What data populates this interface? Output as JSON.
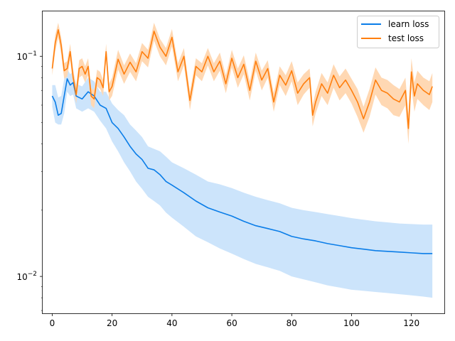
{
  "chart_data": {
    "type": "line",
    "title": "",
    "xlabel": "",
    "ylabel": "",
    "yscale": "log",
    "xlim": [
      -3.2,
      131
    ],
    "ylim": [
      0.0068,
      0.16
    ],
    "grid": false,
    "legend_position": "top-right",
    "x_ticks": [
      0,
      20,
      40,
      60,
      80,
      100,
      120
    ],
    "y_major_ticks": [
      0.01,
      0.1
    ],
    "y_major_tick_labels": [
      {
        "base": "10",
        "exp": "−2"
      },
      {
        "base": "10",
        "exp": "−1"
      }
    ],
    "y_minor_ticks": [
      0.007,
      0.008,
      0.009,
      0.02,
      0.03,
      0.04,
      0.05,
      0.06,
      0.07,
      0.08,
      0.09
    ],
    "series": [
      {
        "name": "learn loss",
        "color": "#1f77b4",
        "line_color": "#0a7de8",
        "band_color": "#cce4fb",
        "x": [
          0,
          1,
          2,
          3,
          4,
          5,
          6,
          7,
          8,
          10,
          12,
          14,
          16,
          18,
          20,
          22,
          24,
          26,
          28,
          30,
          32,
          34,
          36,
          38,
          40,
          44,
          48,
          52,
          56,
          60,
          64,
          68,
          72,
          76,
          80,
          84,
          88,
          92,
          96,
          100,
          104,
          108,
          112,
          116,
          120,
          124,
          127
        ],
        "y": [
          0.066,
          0.062,
          0.054,
          0.055,
          0.066,
          0.079,
          0.074,
          0.076,
          0.066,
          0.064,
          0.069,
          0.066,
          0.06,
          0.058,
          0.05,
          0.047,
          0.043,
          0.039,
          0.036,
          0.034,
          0.031,
          0.0305,
          0.029,
          0.027,
          0.026,
          0.024,
          0.022,
          0.0205,
          0.0196,
          0.0188,
          0.0178,
          0.017,
          0.0165,
          0.016,
          0.0152,
          0.0148,
          0.0145,
          0.0141,
          0.0138,
          0.0135,
          0.0133,
          0.0131,
          0.013,
          0.0129,
          0.0128,
          0.0127,
          0.0127
        ],
        "lower": [
          0.059,
          0.05,
          0.049,
          0.049,
          0.055,
          0.069,
          0.066,
          0.067,
          0.058,
          0.056,
          0.058,
          0.056,
          0.051,
          0.047,
          0.041,
          0.037,
          0.033,
          0.03,
          0.027,
          0.025,
          0.023,
          0.022,
          0.021,
          0.0195,
          0.0185,
          0.0168,
          0.0152,
          0.0143,
          0.0134,
          0.0127,
          0.012,
          0.0114,
          0.011,
          0.0106,
          0.01,
          0.0097,
          0.0094,
          0.0091,
          0.0089,
          0.0087,
          0.0086,
          0.0085,
          0.0084,
          0.0083,
          0.0082,
          0.0081,
          0.008
        ],
        "upper": [
          0.074,
          0.074,
          0.065,
          0.066,
          0.079,
          0.088,
          0.083,
          0.085,
          0.075,
          0.073,
          0.08,
          0.077,
          0.069,
          0.069,
          0.061,
          0.057,
          0.054,
          0.049,
          0.046,
          0.043,
          0.039,
          0.038,
          0.037,
          0.035,
          0.033,
          0.031,
          0.029,
          0.027,
          0.0262,
          0.0252,
          0.024,
          0.023,
          0.0222,
          0.0215,
          0.0205,
          0.02,
          0.0196,
          0.0192,
          0.0188,
          0.0184,
          0.0181,
          0.0178,
          0.0176,
          0.0174,
          0.0173,
          0.0172,
          0.0172
        ]
      },
      {
        "name": "test loss",
        "color": "#ff7f0e",
        "line_color": "#ff7f0e",
        "band_color": "#ffd8b3",
        "x": [
          0,
          1,
          2,
          3,
          4,
          5,
          6,
          7,
          8,
          9,
          10,
          11,
          12,
          13,
          14,
          15,
          16,
          17,
          18,
          19,
          20,
          22,
          24,
          26,
          28,
          30,
          32,
          34,
          36,
          38,
          40,
          42,
          44,
          46,
          48,
          50,
          52,
          54,
          56,
          58,
          60,
          62,
          64,
          66,
          68,
          70,
          72,
          74,
          76,
          78,
          80,
          82,
          84,
          86,
          87,
          88,
          90,
          92,
          94,
          96,
          98,
          100,
          102,
          104,
          106,
          108,
          110,
          112,
          114,
          116,
          118,
          119,
          120,
          121,
          122,
          124,
          126,
          127
        ],
        "y": [
          0.088,
          0.115,
          0.132,
          0.112,
          0.086,
          0.088,
          0.105,
          0.08,
          0.067,
          0.088,
          0.09,
          0.083,
          0.09,
          0.066,
          0.064,
          0.08,
          0.078,
          0.072,
          0.105,
          0.069,
          0.073,
          0.097,
          0.083,
          0.094,
          0.085,
          0.105,
          0.098,
          0.13,
          0.11,
          0.1,
          0.122,
          0.085,
          0.1,
          0.063,
          0.09,
          0.085,
          0.1,
          0.085,
          0.095,
          0.075,
          0.098,
          0.08,
          0.092,
          0.07,
          0.095,
          0.078,
          0.088,
          0.062,
          0.082,
          0.074,
          0.086,
          0.068,
          0.075,
          0.08,
          0.054,
          0.062,
          0.075,
          0.068,
          0.082,
          0.072,
          0.078,
          0.07,
          0.062,
          0.052,
          0.062,
          0.078,
          0.07,
          0.068,
          0.064,
          0.062,
          0.07,
          0.047,
          0.085,
          0.066,
          0.075,
          0.07,
          0.067,
          0.073
        ],
        "lower": [
          0.082,
          0.105,
          0.122,
          0.102,
          0.079,
          0.081,
          0.096,
          0.073,
          0.061,
          0.08,
          0.082,
          0.076,
          0.082,
          0.06,
          0.058,
          0.073,
          0.071,
          0.066,
          0.096,
          0.063,
          0.066,
          0.087,
          0.075,
          0.085,
          0.077,
          0.095,
          0.089,
          0.118,
          0.1,
          0.091,
          0.111,
          0.077,
          0.091,
          0.057,
          0.082,
          0.077,
          0.091,
          0.077,
          0.086,
          0.068,
          0.089,
          0.072,
          0.083,
          0.063,
          0.086,
          0.07,
          0.08,
          0.056,
          0.074,
          0.066,
          0.077,
          0.06,
          0.067,
          0.072,
          0.048,
          0.055,
          0.066,
          0.06,
          0.072,
          0.063,
          0.068,
          0.061,
          0.053,
          0.045,
          0.053,
          0.067,
          0.06,
          0.058,
          0.054,
          0.053,
          0.06,
          0.04,
          0.072,
          0.056,
          0.064,
          0.06,
          0.057,
          0.062
        ],
        "upper": [
          0.094,
          0.125,
          0.142,
          0.122,
          0.093,
          0.095,
          0.114,
          0.087,
          0.073,
          0.096,
          0.098,
          0.09,
          0.098,
          0.072,
          0.07,
          0.087,
          0.085,
          0.078,
          0.114,
          0.075,
          0.08,
          0.107,
          0.091,
          0.103,
          0.093,
          0.115,
          0.107,
          0.142,
          0.12,
          0.109,
          0.133,
          0.093,
          0.109,
          0.069,
          0.098,
          0.093,
          0.109,
          0.093,
          0.104,
          0.082,
          0.107,
          0.088,
          0.101,
          0.077,
          0.104,
          0.086,
          0.096,
          0.068,
          0.09,
          0.082,
          0.095,
          0.076,
          0.083,
          0.088,
          0.06,
          0.069,
          0.084,
          0.076,
          0.092,
          0.081,
          0.088,
          0.079,
          0.071,
          0.059,
          0.071,
          0.089,
          0.08,
          0.078,
          0.074,
          0.071,
          0.08,
          0.054,
          0.098,
          0.076,
          0.086,
          0.08,
          0.077,
          0.084
        ]
      }
    ]
  }
}
